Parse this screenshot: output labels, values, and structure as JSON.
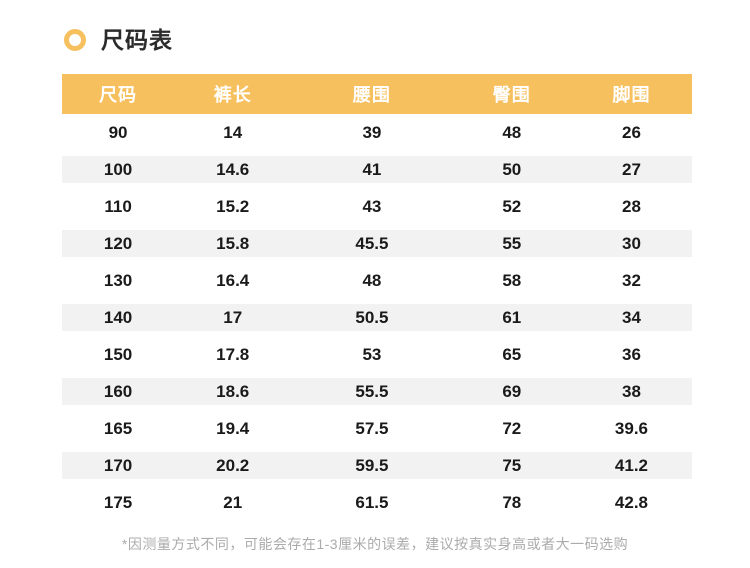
{
  "header": {
    "title": "尺码表"
  },
  "colors": {
    "accent": "#F7C05F",
    "stripe": "#F2F2F2",
    "header_text": "#FFFFFF",
    "body_text": "#1A1A1A",
    "note_text": "#ABABAB"
  },
  "icons": {
    "bullet": "circle-ring"
  },
  "table": {
    "columns": [
      "尺码",
      "裤长",
      "腰围",
      "臀围",
      "脚围"
    ],
    "rows": [
      [
        "90",
        "14",
        "39",
        "48",
        "26"
      ],
      [
        "100",
        "14.6",
        "41",
        "50",
        "27"
      ],
      [
        "110",
        "15.2",
        "43",
        "52",
        "28"
      ],
      [
        "120",
        "15.8",
        "45.5",
        "55",
        "30"
      ],
      [
        "130",
        "16.4",
        "48",
        "58",
        "32"
      ],
      [
        "140",
        "17",
        "50.5",
        "61",
        "34"
      ],
      [
        "150",
        "17.8",
        "53",
        "65",
        "36"
      ],
      [
        "160",
        "18.6",
        "55.5",
        "69",
        "38"
      ],
      [
        "165",
        "19.4",
        "57.5",
        "72",
        "39.6"
      ],
      [
        "170",
        "20.2",
        "59.5",
        "75",
        "41.2"
      ],
      [
        "175",
        "21",
        "61.5",
        "78",
        "42.8"
      ]
    ]
  },
  "note": "*因测量方式不同，可能会存在1-3厘米的误差，建议按真实身高或者大一码选购"
}
